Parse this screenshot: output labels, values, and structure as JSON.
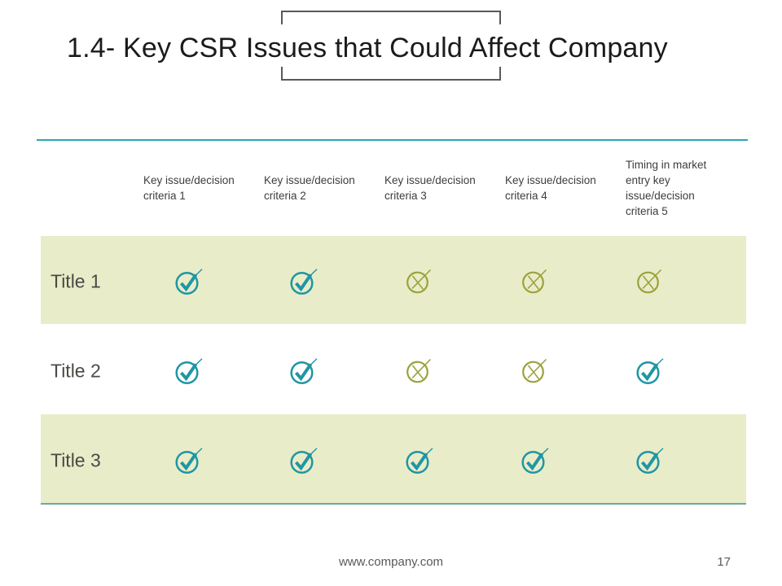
{
  "slide": {
    "title": "1.4- Key CSR Issues that Could Affect Company",
    "footer": {
      "website": "www.company.com",
      "page_number": "17"
    }
  },
  "table": {
    "columns": [
      "Key issue/decision criteria 1",
      "Key issue/decision criteria 2",
      "Key issue/decision criteria 3",
      "Key issue/decision criteria 4",
      "Timing in market entry key issue/decision criteria 5"
    ],
    "rows": [
      {
        "label": "Title 1",
        "highlighted": true,
        "cells": [
          "check",
          "check",
          "cross",
          "cross",
          "cross"
        ]
      },
      {
        "label": "Title 2",
        "highlighted": false,
        "cells": [
          "check",
          "check",
          "cross",
          "cross",
          "check"
        ]
      },
      {
        "label": "Title 3",
        "highlighted": true,
        "cells": [
          "check",
          "check",
          "check",
          "check",
          "check"
        ]
      }
    ],
    "cell_legend": {
      "check": "teal circled check mark",
      "cross": "olive circled x mark"
    }
  },
  "colors": {
    "check": "#1f96a3",
    "cross": "#9aa23c",
    "row_highlight": "#e9ecc9",
    "divider_top": "#2aa6b4",
    "divider_bottom": "#6ba7ab",
    "bracket": "#595959"
  }
}
